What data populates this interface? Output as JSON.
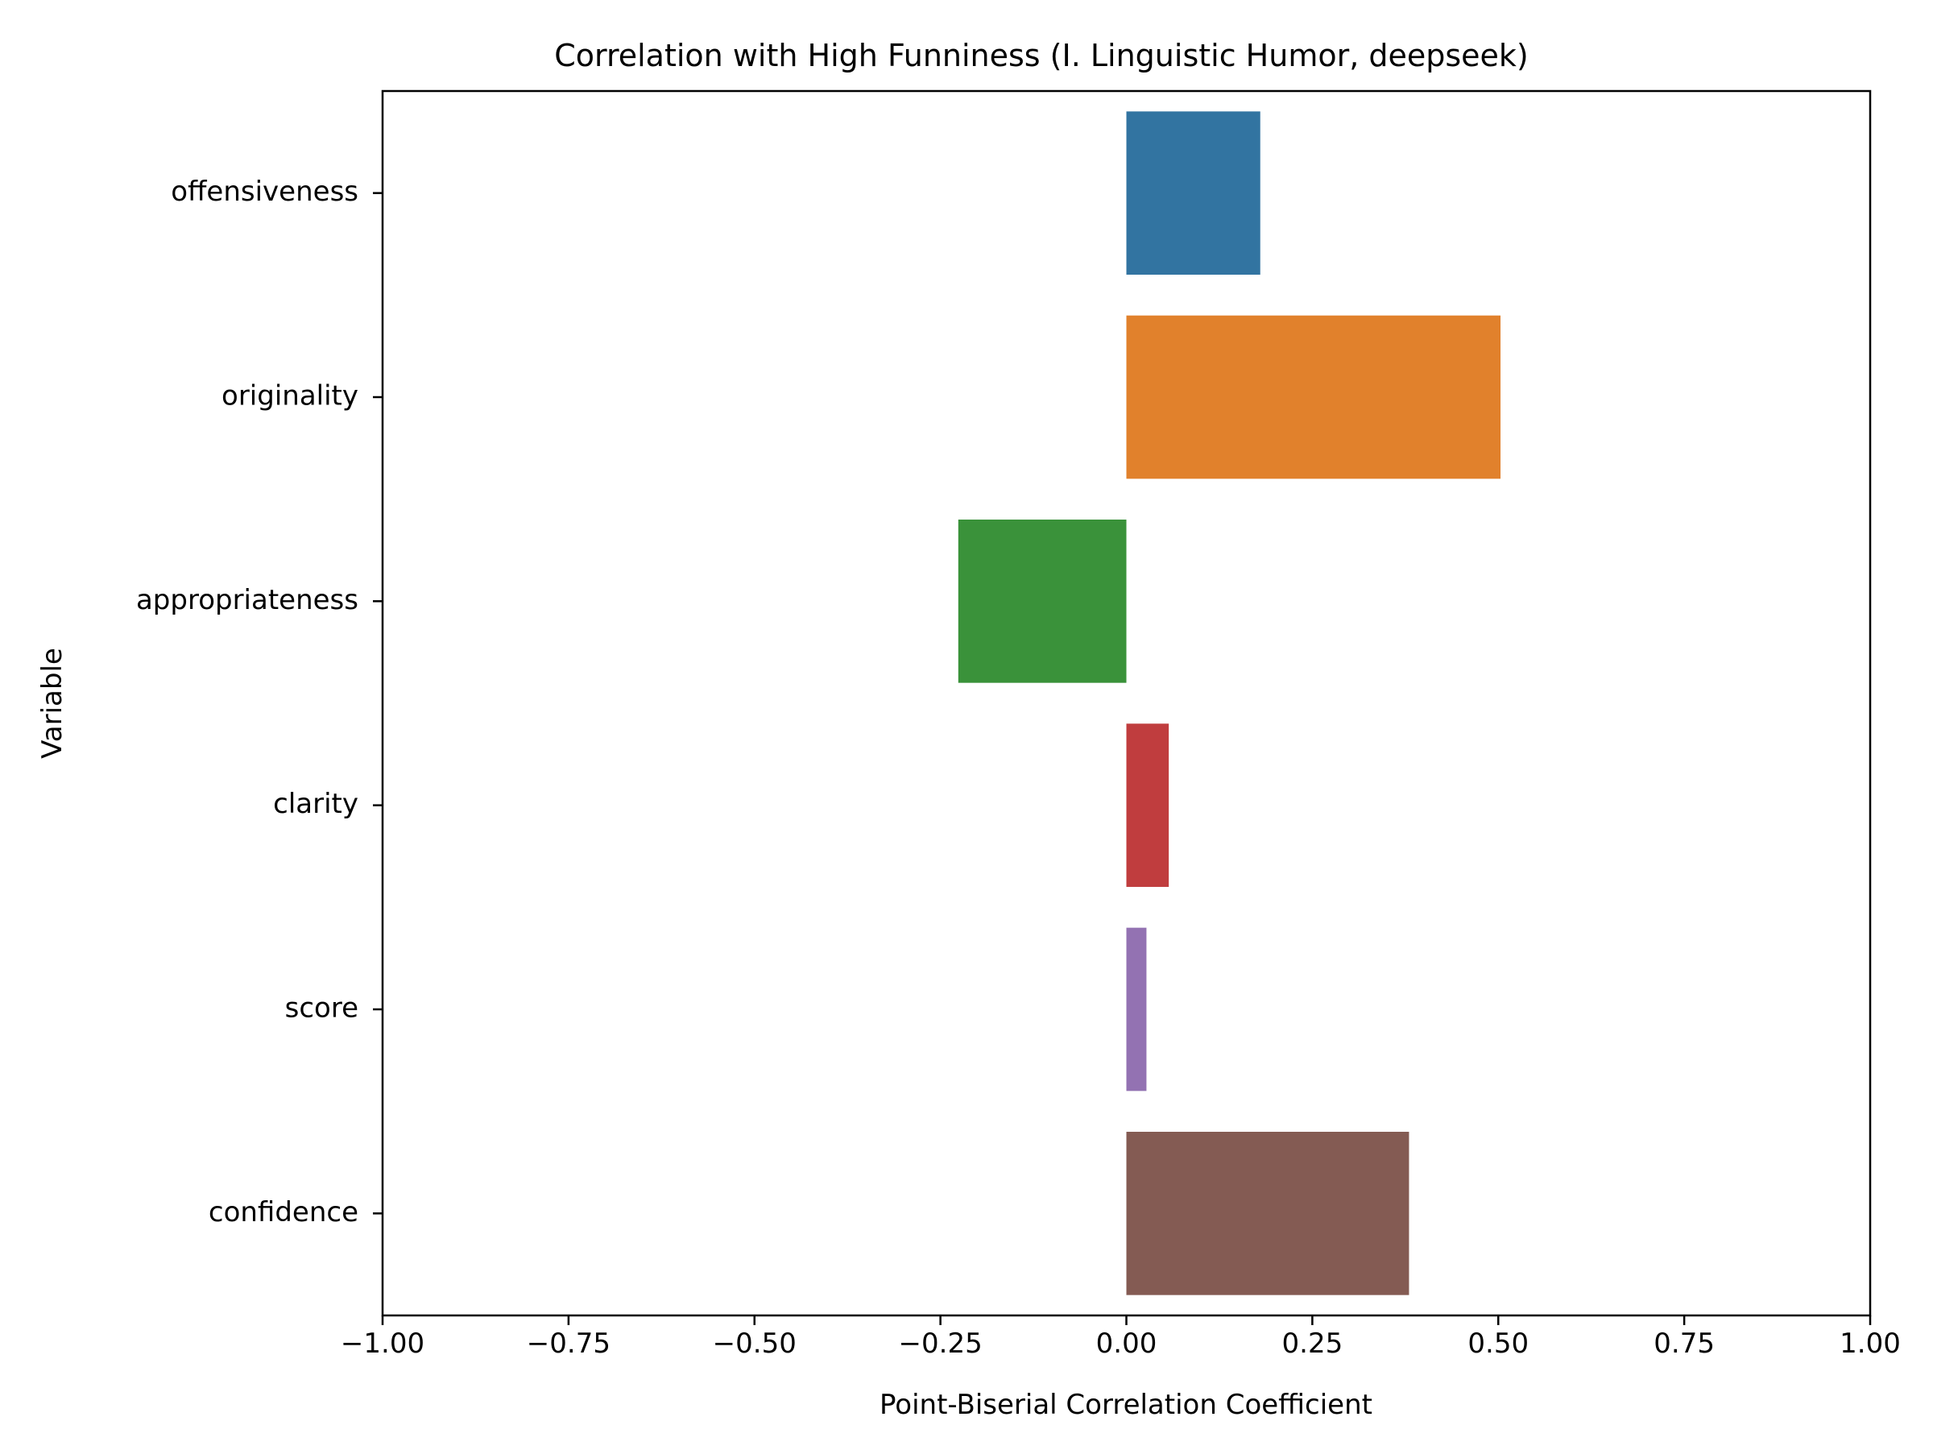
{
  "chart_data": {
    "type": "bar",
    "orientation": "horizontal",
    "title": "Correlation with High Funniness (I. Linguistic Humor, deepseek)",
    "xlabel": "Point-Biserial Correlation Coefficient",
    "ylabel": "Variable",
    "xlim": [
      -1.0,
      1.0
    ],
    "xticks": [
      -1.0,
      -0.75,
      -0.5,
      -0.25,
      0.0,
      0.25,
      0.5,
      0.75,
      1.0
    ],
    "xtick_labels": [
      "−1.00",
      "−0.75",
      "−0.50",
      "−0.25",
      "0.00",
      "0.25",
      "0.50",
      "0.75",
      "1.00"
    ],
    "categories": [
      "offensiveness",
      "originality",
      "appropriateness",
      "clarity",
      "score",
      "confidence"
    ],
    "values": [
      0.18,
      0.503,
      -0.226,
      0.057,
      0.027,
      0.38
    ],
    "colors": [
      "#3274a1",
      "#e1812c",
      "#3a923a",
      "#c03d3e",
      "#9372b2",
      "#845b53"
    ],
    "grid": false,
    "legend": "none"
  }
}
